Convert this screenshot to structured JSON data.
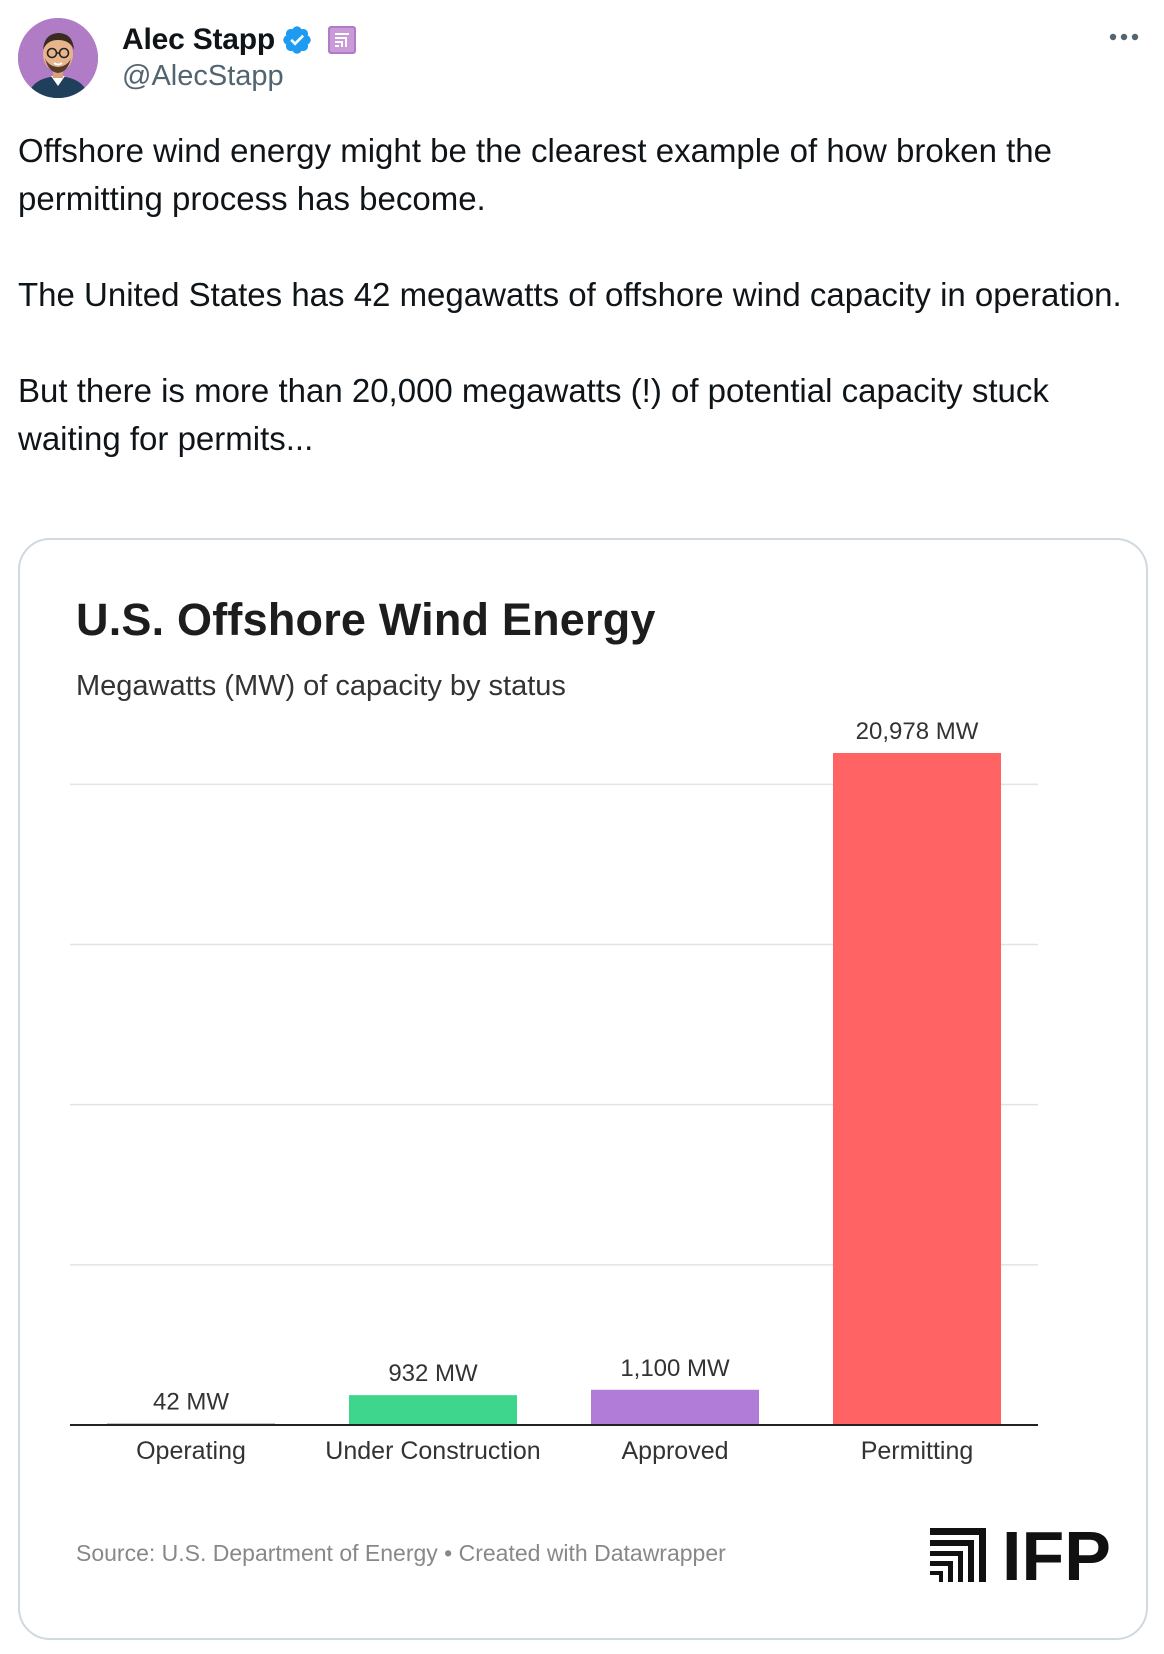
{
  "tweet": {
    "author_name": "Alec Stapp",
    "author_handle": "@AlecStapp",
    "paragraphs": [
      "Offshore wind energy might be the clearest example of how broken the permitting process has become.",
      "The United States has 42 megawatts of offshore wind capacity in operation.",
      "But there is more than 20,000 megawatts (!) of potential capacity stuck waiting for permits..."
    ],
    "icons": {
      "verified": "verified-badge-icon",
      "affiliate": "affiliate-badge-icon",
      "more": "more-options-icon"
    },
    "colors": {
      "text": "#0f1419",
      "secondary_text": "#536471",
      "verified_blue": "#1d9bf0",
      "affiliate_purple": "#b07cc6"
    }
  },
  "chart_data": {
    "type": "bar",
    "title": "U.S. Offshore Wind Energy",
    "subtitle": "Megawatts (MW) of capacity by status",
    "categories": [
      "Operating",
      "Under Construction",
      "Approved",
      "Permitting"
    ],
    "values": [
      42,
      932,
      1100,
      20978
    ],
    "value_labels": [
      "42 MW",
      "932 MW",
      "1,100 MW",
      "20,978 MW"
    ],
    "colors": [
      "#5a5a5a",
      "#3dd68c",
      "#b07cd8",
      "#ff6363"
    ],
    "ylim": [
      0,
      20978
    ],
    "y_gridlines": [
      5000,
      10000,
      15000,
      20000
    ],
    "grid": true,
    "legend": "none",
    "source": "Source: U.S. Department of Energy • Created with Datawrapper",
    "logo_text": "IFP"
  }
}
